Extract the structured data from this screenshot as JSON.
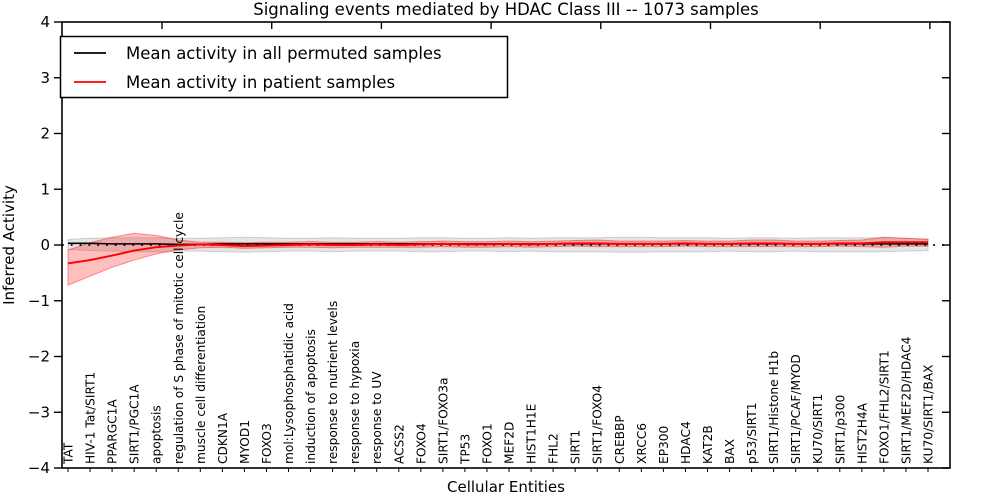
{
  "figure": {
    "background": "#ffffff"
  },
  "chart_data": {
    "type": "line",
    "title": "Signaling events mediated by HDAC Class III -- 1073 samples",
    "xlabel": "Cellular Entities",
    "ylabel": "Inferred Activity",
    "ylim": [
      -4,
      4
    ],
    "yticklabels": [
      "4",
      "3",
      "2",
      "1",
      "0",
      "−1",
      "−2",
      "−3",
      "−4"
    ],
    "yticks": [
      4,
      3,
      2,
      1,
      0,
      -1,
      -2,
      -3,
      -4
    ],
    "grid": false,
    "legend_position": "upper left",
    "zero_reference_line": "dotted black at y=0",
    "categories": [
      "TAT",
      "HIV-1 Tat/SIRT1",
      "PPARGC1A",
      "SIRT1/PGC1A",
      "apoptosis",
      "regulation of S phase of mitotic cell cycle",
      "muscle cell differentiation",
      "CDKN1A",
      "MYOD1",
      "FOXO3",
      "mol:Lysophosphatidic acid",
      "induction of apoptosis",
      "response to nutrient levels",
      "response to hypoxia",
      "response to UV",
      "ACSS2",
      "FOXO4",
      "SIRT1/FOXO3a",
      "TP53",
      "FOXO1",
      "MEF2D",
      "HIST1H1E",
      "FHL2",
      "SIRT1",
      "SIRT1/FOXO4",
      "CREBBP",
      "XRCC6",
      "EP300",
      "HDAC4",
      "KAT2B",
      "BAX",
      "p53/SIRT1",
      "SIRT1/Histone H1b",
      "SIRT1/PCAF/MYOD",
      "KU70/SIRT1",
      "SIRT1/p300",
      "HIST2H4A",
      "FOXO1/FHL2/SIRT1",
      "SIRT1/MEF2D/HDAC4",
      "KU70/SIRT1/BAX"
    ],
    "series": [
      {
        "name": "Mean activity in all permuted samples",
        "color": "#000000",
        "values": [
          0.03,
          0.03,
          0.02,
          0.02,
          0.02,
          0.01,
          0.01,
          0.02,
          0.02,
          0.02,
          0.02,
          0.02,
          0.02,
          0.02,
          0.02,
          0.02,
          0.02,
          0.02,
          0.02,
          0.02,
          0.02,
          0.02,
          0.02,
          0.02,
          0.02,
          0.02,
          0.02,
          0.02,
          0.02,
          0.02,
          0.02,
          0.02,
          0.02,
          0.02,
          0.02,
          0.02,
          0.02,
          0.02,
          0.02,
          0.02
        ]
      },
      {
        "name": "Mean activity in patient samples",
        "color": "#ff0000",
        "values": [
          -0.33,
          -0.27,
          -0.19,
          -0.1,
          -0.04,
          -0.01,
          0.01,
          0.0,
          -0.02,
          -0.01,
          0.0,
          0.01,
          0.0,
          0.0,
          0.01,
          0.0,
          0.01,
          0.02,
          0.01,
          0.01,
          0.02,
          0.01,
          0.02,
          0.03,
          0.03,
          0.02,
          0.02,
          0.02,
          0.03,
          0.02,
          0.02,
          0.03,
          0.03,
          0.02,
          0.02,
          0.03,
          0.03,
          0.05,
          0.05,
          0.05
        ]
      }
    ],
    "bands": [
      {
        "name": "permuted samples range",
        "fill": "rgba(0,0,0,0.10)",
        "edge": "rgba(0,0,0,0.15)",
        "upper": [
          0.1,
          0.12,
          0.13,
          0.13,
          0.13,
          0.12,
          0.12,
          0.13,
          0.14,
          0.13,
          0.12,
          0.12,
          0.13,
          0.12,
          0.12,
          0.12,
          0.13,
          0.13,
          0.12,
          0.12,
          0.13,
          0.12,
          0.13,
          0.13,
          0.13,
          0.14,
          0.14,
          0.13,
          0.13,
          0.13,
          0.12,
          0.13,
          0.13,
          0.12,
          0.13,
          0.13,
          0.13,
          0.13,
          0.12,
          0.11
        ],
        "lower": [
          -0.08,
          -0.1,
          -0.11,
          -0.12,
          -0.12,
          -0.11,
          -0.11,
          -0.12,
          -0.13,
          -0.12,
          -0.11,
          -0.11,
          -0.12,
          -0.11,
          -0.11,
          -0.11,
          -0.12,
          -0.12,
          -0.11,
          -0.11,
          -0.12,
          -0.11,
          -0.12,
          -0.12,
          -0.12,
          -0.13,
          -0.13,
          -0.12,
          -0.12,
          -0.12,
          -0.11,
          -0.12,
          -0.12,
          -0.11,
          -0.12,
          -0.12,
          -0.12,
          -0.12,
          -0.11,
          -0.1
        ]
      },
      {
        "name": "patient samples range",
        "fill": "rgba(255,0,0,0.25)",
        "edge": "rgba(255,0,0,0.40)",
        "upper": [
          -0.09,
          0.04,
          0.14,
          0.21,
          0.17,
          0.09,
          0.05,
          0.05,
          0.04,
          0.05,
          0.05,
          0.06,
          0.05,
          0.05,
          0.06,
          0.05,
          0.06,
          0.07,
          0.06,
          0.06,
          0.07,
          0.06,
          0.07,
          0.08,
          0.09,
          0.07,
          0.07,
          0.07,
          0.08,
          0.07,
          0.07,
          0.09,
          0.09,
          0.07,
          0.07,
          0.08,
          0.09,
          0.14,
          0.12,
          0.1
        ],
        "lower": [
          -0.72,
          -0.56,
          -0.4,
          -0.27,
          -0.16,
          -0.09,
          -0.05,
          -0.04,
          -0.06,
          -0.05,
          -0.04,
          -0.04,
          -0.05,
          -0.04,
          -0.04,
          -0.04,
          -0.04,
          -0.03,
          -0.04,
          -0.04,
          -0.03,
          -0.04,
          -0.03,
          -0.02,
          -0.03,
          -0.03,
          -0.03,
          -0.03,
          -0.02,
          -0.03,
          -0.03,
          -0.03,
          -0.03,
          -0.03,
          -0.03,
          -0.02,
          -0.03,
          -0.04,
          -0.02,
          -0.02
        ]
      }
    ]
  }
}
